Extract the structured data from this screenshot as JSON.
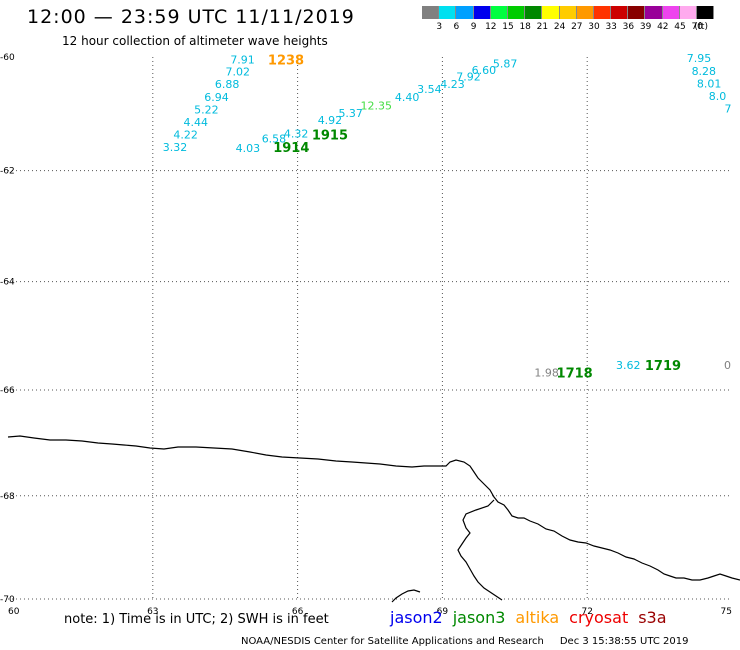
{
  "header": {
    "title": "12:00 — 23:59 UTC 11/11/2019",
    "subtitle": "12 hour collection of altimeter wave heights"
  },
  "legend": {
    "unit": "(ft)",
    "bins": [
      {
        "label": "3",
        "color": "#808080"
      },
      {
        "label": "6",
        "color": "#00e0f0"
      },
      {
        "label": "9",
        "color": "#00a0ff"
      },
      {
        "label": "12",
        "color": "#0000ee"
      },
      {
        "label": "15",
        "color": "#00ff40"
      },
      {
        "label": "18",
        "color": "#00cc00"
      },
      {
        "label": "21",
        "color": "#008800"
      },
      {
        "label": "24",
        "color": "#ffff00"
      },
      {
        "label": "27",
        "color": "#ffcc00"
      },
      {
        "label": "30",
        "color": "#ff9900"
      },
      {
        "label": "33",
        "color": "#ff3300"
      },
      {
        "label": "36",
        "color": "#cc0000"
      },
      {
        "label": "39",
        "color": "#880000"
      },
      {
        "label": "42",
        "color": "#990099"
      },
      {
        "label": "45",
        "color": "#ee44ee"
      },
      {
        "label": "70",
        "color": "#ffaaee"
      },
      {
        "label": "",
        "color": "#000000"
      }
    ]
  },
  "map": {
    "lon_range": [
      60,
      75
    ],
    "lat_range": [
      -60,
      -70
    ],
    "lon_ticks": [
      "60",
      "63",
      "66",
      "69",
      "72",
      "75"
    ],
    "lat_ticks": [
      "-60",
      "-62",
      "-64",
      "-66",
      "-68",
      "-70"
    ],
    "wave_readings": [
      {
        "value": "7.91",
        "lon": 64.86,
        "lat": -60.04,
        "color": "#00bbdd"
      },
      {
        "value": "7.02",
        "lon": 64.76,
        "lat": -60.25,
        "color": "#00bbdd"
      },
      {
        "value": "6.88",
        "lon": 64.54,
        "lat": -60.47,
        "color": "#00bbdd"
      },
      {
        "value": "6.94",
        "lon": 64.32,
        "lat": -60.7,
        "color": "#00bbdd"
      },
      {
        "value": "5.22",
        "lon": 64.11,
        "lat": -60.92,
        "color": "#00bbdd"
      },
      {
        "value": "4.44",
        "lon": 63.89,
        "lat": -61.14,
        "color": "#00bbdd"
      },
      {
        "value": "4.22",
        "lon": 63.68,
        "lat": -61.36,
        "color": "#00bbdd"
      },
      {
        "value": "3.32",
        "lon": 63.46,
        "lat": -61.58,
        "color": "#00bbdd"
      },
      {
        "value": "4.03",
        "lon": 64.97,
        "lat": -61.6,
        "color": "#00bbdd"
      },
      {
        "value": "6.58",
        "lon": 65.51,
        "lat": -61.43,
        "color": "#00bbdd"
      },
      {
        "value": "4.32",
        "lon": 65.97,
        "lat": -61.34,
        "color": "#00bbdd"
      },
      {
        "value": "4.92",
        "lon": 66.67,
        "lat": -61.1,
        "color": "#00bbdd"
      },
      {
        "value": "5.37",
        "lon": 67.1,
        "lat": -60.98,
        "color": "#00bbdd"
      },
      {
        "value": "12.35",
        "lon": 67.63,
        "lat": -60.85,
        "color": "#44dd44"
      },
      {
        "value": "4.40",
        "lon": 68.27,
        "lat": -60.7,
        "color": "#00bbdd"
      },
      {
        "value": "3.54",
        "lon": 68.73,
        "lat": -60.56,
        "color": "#00bbdd"
      },
      {
        "value": "4.23",
        "lon": 69.21,
        "lat": -60.47,
        "color": "#00bbdd"
      },
      {
        "value": "7.92",
        "lon": 69.54,
        "lat": -60.34,
        "color": "#00bbdd"
      },
      {
        "value": "6.60",
        "lon": 69.86,
        "lat": -60.23,
        "color": "#00bbdd"
      },
      {
        "value": "5.87",
        "lon": 70.3,
        "lat": -60.11,
        "color": "#00bbdd"
      },
      {
        "value": "7.95",
        "lon": 74.57,
        "lat": -60.02,
        "color": "#00bbdd"
      },
      {
        "value": "8.28",
        "lon": 74.67,
        "lat": -60.24,
        "color": "#00bbdd"
      },
      {
        "value": "8.01",
        "lon": 74.78,
        "lat": -60.46,
        "color": "#00bbdd"
      },
      {
        "value": "8.0",
        "lon": 74.88,
        "lat": -60.68,
        "color": "#00bbdd"
      },
      {
        "value": "7",
        "lon": 74.99,
        "lat": -60.9,
        "color": "#00bbdd"
      },
      {
        "value": "1.98",
        "lon": 71.16,
        "lat": -65.67,
        "color": "#808080"
      },
      {
        "value": "3.62",
        "lon": 72.85,
        "lat": -65.53,
        "color": "#00bbdd"
      },
      {
        "value": "0",
        "lon": 74.98,
        "lat": -65.53,
        "color": "#808080"
      }
    ],
    "pass_times": [
      {
        "value": "1238",
        "lon": 65.76,
        "lat": -60.04,
        "color": "#ff9900"
      },
      {
        "value": "1914",
        "lon": 65.87,
        "lat": -61.58,
        "color": "#008800"
      },
      {
        "value": "1915",
        "lon": 66.67,
        "lat": -61.36,
        "color": "#008800"
      },
      {
        "value": "1718",
        "lon": 71.74,
        "lat": -65.67,
        "color": "#008800"
      },
      {
        "value": "1719",
        "lon": 73.57,
        "lat": -65.53,
        "color": "#008800"
      }
    ]
  },
  "footer": {
    "note": "note: 1) Time is in UTC; 2) SWH is in feet",
    "satellites": [
      {
        "name": "jason2",
        "color": "#0000ee"
      },
      {
        "name": "jason3",
        "color": "#008800"
      },
      {
        "name": "altika",
        "color": "#ff9900"
      },
      {
        "name": "cryosat",
        "color": "#ee0000"
      },
      {
        "name": "s3a",
        "color": "#990000"
      }
    ],
    "credit": "NOAA/NESDIS Center for Satellite Applications and Research",
    "timestamp": "Dec  3 15:38:55 UTC 2019"
  }
}
